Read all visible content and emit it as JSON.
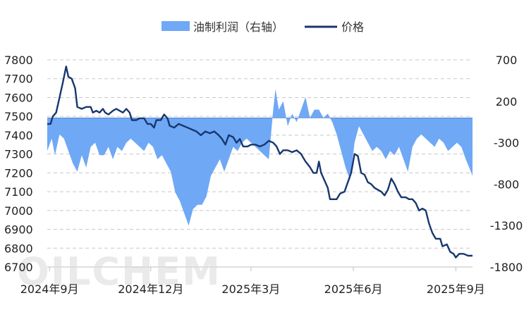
{
  "watermark": "OILCHEM",
  "chart_data": {
    "type": "line+area",
    "legend": {
      "placement": "top-center"
    },
    "grid": true,
    "x_labels": [
      "2024年9月",
      "2024年12月",
      "2025年3月",
      "2025年6月",
      "2025年9月"
    ],
    "x_label_dates": [
      "2024-09-01",
      "2024-12-01",
      "2025-03-01",
      "2025-06-01",
      "2025-09-01"
    ],
    "x_range": [
      "2024-08-30",
      "2025-09-16"
    ],
    "y_left": {
      "ticks": [
        7800,
        7700,
        7600,
        7500,
        7400,
        7300,
        7200,
        7100,
        7000,
        6900,
        6800,
        6700
      ],
      "range": [
        6700,
        7800
      ]
    },
    "y_right": {
      "ticks": [
        "700",
        "200",
        "-300",
        "-800",
        "-1300",
        "-1800"
      ],
      "range": [
        -1800,
        700
      ]
    },
    "series": [
      {
        "name": "油制利润（右轴）",
        "type": "area",
        "axis": "right",
        "color": "#6fa8f5",
        "points": [
          [
            "2024-08-30",
            -400
          ],
          [
            "2024-09-03",
            -250
          ],
          [
            "2024-09-06",
            -450
          ],
          [
            "2024-09-10",
            -200
          ],
          [
            "2024-09-14",
            -250
          ],
          [
            "2024-09-18",
            -400
          ],
          [
            "2024-09-22",
            -550
          ],
          [
            "2024-09-26",
            -650
          ],
          [
            "2024-09-30",
            -450
          ],
          [
            "2024-10-04",
            -600
          ],
          [
            "2024-10-08",
            -350
          ],
          [
            "2024-10-12",
            -300
          ],
          [
            "2024-10-16",
            -450
          ],
          [
            "2024-10-20",
            -450
          ],
          [
            "2024-10-24",
            -350
          ],
          [
            "2024-10-28",
            -500
          ],
          [
            "2024-11-01",
            -350
          ],
          [
            "2024-11-05",
            -400
          ],
          [
            "2024-11-09",
            -300
          ],
          [
            "2024-11-13",
            -250
          ],
          [
            "2024-11-17",
            -300
          ],
          [
            "2024-11-21",
            -350
          ],
          [
            "2024-11-25",
            -400
          ],
          [
            "2024-11-29",
            -300
          ],
          [
            "2024-12-03",
            -350
          ],
          [
            "2024-12-07",
            -500
          ],
          [
            "2024-12-11",
            -450
          ],
          [
            "2024-12-15",
            -550
          ],
          [
            "2024-12-19",
            -650
          ],
          [
            "2024-12-23",
            -900
          ],
          [
            "2024-12-27",
            -1000
          ],
          [
            "2024-12-31",
            -1150
          ],
          [
            "2025-01-04",
            -1300
          ],
          [
            "2025-01-08",
            -1100
          ],
          [
            "2025-01-12",
            -1050
          ],
          [
            "2025-01-16",
            -1050
          ],
          [
            "2025-01-20",
            -950
          ],
          [
            "2025-01-24",
            -700
          ],
          [
            "2025-01-28",
            -600
          ],
          [
            "2025-02-01",
            -500
          ],
          [
            "2025-02-05",
            -650
          ],
          [
            "2025-02-09",
            -500
          ],
          [
            "2025-02-13",
            -350
          ],
          [
            "2025-02-17",
            -400
          ],
          [
            "2025-02-21",
            -300
          ],
          [
            "2025-02-25",
            -250
          ],
          [
            "2025-03-01",
            -300
          ],
          [
            "2025-03-05",
            -350
          ],
          [
            "2025-03-09",
            -400
          ],
          [
            "2025-03-13",
            -450
          ],
          [
            "2025-03-17",
            -500
          ],
          [
            "2025-03-19",
            -200
          ],
          [
            "2025-03-21",
            100
          ],
          [
            "2025-03-23",
            350
          ],
          [
            "2025-03-26",
            100
          ],
          [
            "2025-03-30",
            200
          ],
          [
            "2025-04-03",
            -100
          ],
          [
            "2025-04-07",
            50
          ],
          [
            "2025-04-11",
            -50
          ],
          [
            "2025-04-15",
            100
          ],
          [
            "2025-04-19",
            250
          ],
          [
            "2025-04-23",
            0
          ],
          [
            "2025-04-27",
            100
          ],
          [
            "2025-05-01",
            100
          ],
          [
            "2025-05-05",
            0
          ],
          [
            "2025-05-09",
            50
          ],
          [
            "2025-05-13",
            -50
          ],
          [
            "2025-05-17",
            -200
          ],
          [
            "2025-05-21",
            -400
          ],
          [
            "2025-05-25",
            -600
          ],
          [
            "2025-05-29",
            -750
          ],
          [
            "2025-06-02",
            -300
          ],
          [
            "2025-06-06",
            -100
          ],
          [
            "2025-06-10",
            -200
          ],
          [
            "2025-06-14",
            -300
          ],
          [
            "2025-06-18",
            -400
          ],
          [
            "2025-06-22",
            -350
          ],
          [
            "2025-06-26",
            -400
          ],
          [
            "2025-06-30",
            -500
          ],
          [
            "2025-07-04",
            -400
          ],
          [
            "2025-07-08",
            -450
          ],
          [
            "2025-07-12",
            -350
          ],
          [
            "2025-07-16",
            -500
          ],
          [
            "2025-07-20",
            -650
          ],
          [
            "2025-07-24",
            -350
          ],
          [
            "2025-07-28",
            -250
          ],
          [
            "2025-08-01",
            -200
          ],
          [
            "2025-08-05",
            -250
          ],
          [
            "2025-08-09",
            -300
          ],
          [
            "2025-08-13",
            -350
          ],
          [
            "2025-08-17",
            -250
          ],
          [
            "2025-08-21",
            -300
          ],
          [
            "2025-08-25",
            -400
          ],
          [
            "2025-08-29",
            -350
          ],
          [
            "2025-09-02",
            -300
          ],
          [
            "2025-09-06",
            -350
          ],
          [
            "2025-09-10",
            -500
          ],
          [
            "2025-09-13",
            -600
          ],
          [
            "2025-09-16",
            -700
          ]
        ]
      },
      {
        "name": "价格",
        "type": "line",
        "axis": "left",
        "color": "#17376e",
        "points": [
          [
            "2024-08-30",
            7460
          ],
          [
            "2024-09-02",
            7460
          ],
          [
            "2024-09-04",
            7500
          ],
          [
            "2024-09-07",
            7520
          ],
          [
            "2024-09-10",
            7600
          ],
          [
            "2024-09-13",
            7680
          ],
          [
            "2024-09-16",
            7765
          ],
          [
            "2024-09-18",
            7710
          ],
          [
            "2024-09-21",
            7700
          ],
          [
            "2024-09-24",
            7650
          ],
          [
            "2024-09-26",
            7550
          ],
          [
            "2024-09-30",
            7540
          ],
          [
            "2024-10-04",
            7550
          ],
          [
            "2024-10-08",
            7550
          ],
          [
            "2024-10-10",
            7520
          ],
          [
            "2024-10-13",
            7530
          ],
          [
            "2024-10-16",
            7520
          ],
          [
            "2024-10-19",
            7540
          ],
          [
            "2024-10-21",
            7520
          ],
          [
            "2024-10-24",
            7510
          ],
          [
            "2024-10-28",
            7530
          ],
          [
            "2024-10-31",
            7540
          ],
          [
            "2024-11-03",
            7530
          ],
          [
            "2024-11-06",
            7520
          ],
          [
            "2024-11-09",
            7540
          ],
          [
            "2024-11-12",
            7520
          ],
          [
            "2024-11-14",
            7480
          ],
          [
            "2024-11-18",
            7480
          ],
          [
            "2024-11-21",
            7490
          ],
          [
            "2024-11-25",
            7490
          ],
          [
            "2024-11-28",
            7460
          ],
          [
            "2024-12-01",
            7460
          ],
          [
            "2024-12-04",
            7440
          ],
          [
            "2024-12-06",
            7480
          ],
          [
            "2024-12-10",
            7480
          ],
          [
            "2024-12-13",
            7510
          ],
          [
            "2024-12-16",
            7490
          ],
          [
            "2024-12-18",
            7450
          ],
          [
            "2024-12-22",
            7440
          ],
          [
            "2024-12-26",
            7460
          ],
          [
            "2024-12-30",
            7450
          ],
          [
            "2025-01-03",
            7440
          ],
          [
            "2025-01-07",
            7430
          ],
          [
            "2025-01-11",
            7420
          ],
          [
            "2025-01-15",
            7400
          ],
          [
            "2025-01-19",
            7420
          ],
          [
            "2025-01-23",
            7410
          ],
          [
            "2025-01-27",
            7420
          ],
          [
            "2025-01-31",
            7400
          ],
          [
            "2025-02-03",
            7380
          ],
          [
            "2025-02-06",
            7350
          ],
          [
            "2025-02-09",
            7400
          ],
          [
            "2025-02-13",
            7390
          ],
          [
            "2025-02-16",
            7360
          ],
          [
            "2025-02-19",
            7380
          ],
          [
            "2025-02-22",
            7340
          ],
          [
            "2025-02-26",
            7340
          ],
          [
            "2025-03-01",
            7350
          ],
          [
            "2025-03-05",
            7350
          ],
          [
            "2025-03-09",
            7340
          ],
          [
            "2025-03-13",
            7350
          ],
          [
            "2025-03-17",
            7370
          ],
          [
            "2025-03-21",
            7360
          ],
          [
            "2025-03-24",
            7340
          ],
          [
            "2025-03-27",
            7300
          ],
          [
            "2025-03-30",
            7320
          ],
          [
            "2025-04-03",
            7320
          ],
          [
            "2025-04-07",
            7310
          ],
          [
            "2025-04-11",
            7320
          ],
          [
            "2025-04-15",
            7300
          ],
          [
            "2025-04-19",
            7260
          ],
          [
            "2025-04-23",
            7230
          ],
          [
            "2025-04-26",
            7200
          ],
          [
            "2025-04-29",
            7200
          ],
          [
            "2025-05-01",
            7260
          ],
          [
            "2025-05-03",
            7200
          ],
          [
            "2025-05-06",
            7160
          ],
          [
            "2025-05-09",
            7120
          ],
          [
            "2025-05-11",
            7060
          ],
          [
            "2025-05-17",
            7060
          ],
          [
            "2025-05-20",
            7090
          ],
          [
            "2025-05-24",
            7100
          ],
          [
            "2025-05-27",
            7150
          ],
          [
            "2025-05-30",
            7200
          ],
          [
            "2025-06-02",
            7300
          ],
          [
            "2025-06-05",
            7290
          ],
          [
            "2025-06-08",
            7200
          ],
          [
            "2025-06-11",
            7190
          ],
          [
            "2025-06-14",
            7150
          ],
          [
            "2025-06-17",
            7140
          ],
          [
            "2025-06-20",
            7120
          ],
          [
            "2025-06-23",
            7110
          ],
          [
            "2025-06-26",
            7100
          ],
          [
            "2025-06-29",
            7080
          ],
          [
            "2025-07-02",
            7110
          ],
          [
            "2025-07-05",
            7170
          ],
          [
            "2025-07-08",
            7140
          ],
          [
            "2025-07-11",
            7100
          ],
          [
            "2025-07-14",
            7070
          ],
          [
            "2025-07-18",
            7070
          ],
          [
            "2025-07-21",
            7060
          ],
          [
            "2025-07-24",
            7060
          ],
          [
            "2025-07-27",
            7040
          ],
          [
            "2025-07-30",
            7000
          ],
          [
            "2025-08-02",
            7010
          ],
          [
            "2025-08-05",
            7000
          ],
          [
            "2025-08-08",
            6930
          ],
          [
            "2025-08-11",
            6880
          ],
          [
            "2025-08-14",
            6850
          ],
          [
            "2025-08-18",
            6850
          ],
          [
            "2025-08-20",
            6810
          ],
          [
            "2025-08-24",
            6820
          ],
          [
            "2025-08-27",
            6780
          ],
          [
            "2025-08-30",
            6770
          ],
          [
            "2025-09-01",
            6750
          ],
          [
            "2025-09-04",
            6770
          ],
          [
            "2025-09-08",
            6770
          ],
          [
            "2025-09-12",
            6760
          ],
          [
            "2025-09-16",
            6760
          ]
        ]
      }
    ]
  }
}
